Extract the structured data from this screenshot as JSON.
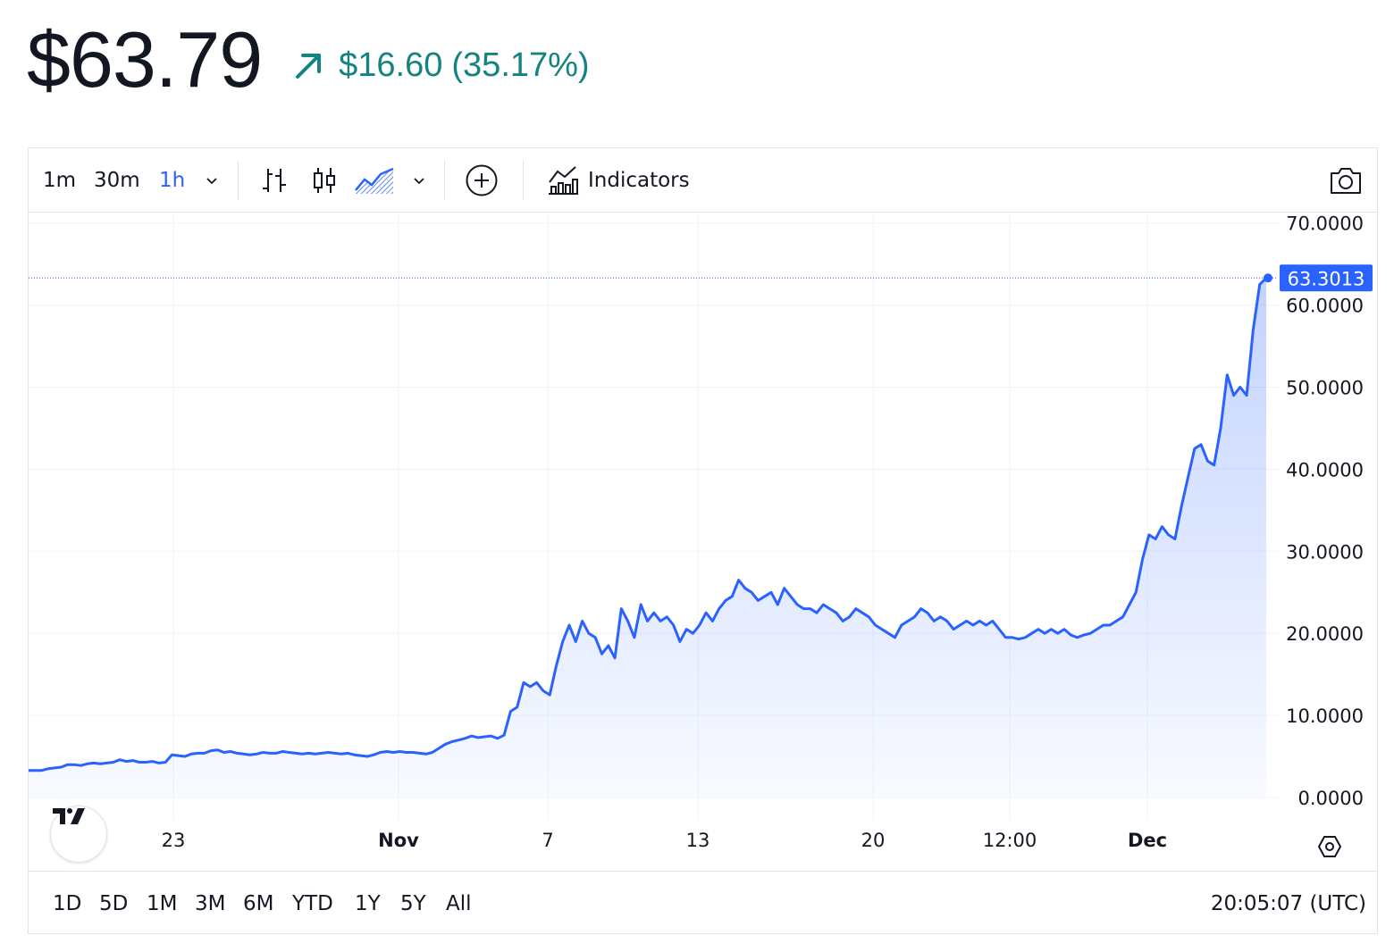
{
  "header": {
    "price": "$63.79",
    "change": "$16.60",
    "change_pct": "(35.17%)",
    "direction_icon": "arrow-up-right-icon",
    "change_color": "#138481"
  },
  "toolbar": {
    "intervals": [
      "1m",
      "30m",
      "1h"
    ],
    "active_interval": "1h",
    "indicators_label": "Indicators",
    "icons": [
      "chevron-down-icon",
      "bar-chart-icon",
      "candlestick-icon",
      "area-chart-icon",
      "chevron-down-icon",
      "plus-circle-icon",
      "indicators-icon",
      "camera-icon"
    ]
  },
  "chart_data": {
    "type": "area",
    "line_color": "#2962ff",
    "y_ticks": [
      "70.0000",
      "60.0000",
      "50.0000",
      "40.0000",
      "30.0000",
      "20.0000",
      "10.0000",
      "0.0000"
    ],
    "y_tick_values": [
      70,
      60,
      50,
      40,
      30,
      20,
      10,
      0
    ],
    "ylim": [
      0,
      70
    ],
    "x_ticks": [
      "23",
      "Nov",
      "7",
      "13",
      "20",
      "12:00",
      "Dec"
    ],
    "x_tick_bold": [
      false,
      true,
      false,
      false,
      false,
      false,
      true
    ],
    "last_value_label": "63.3013",
    "last_value": 63.3013,
    "grid": true,
    "series": [
      {
        "values": [
          3.3,
          3.3,
          3.3,
          3.5,
          3.6,
          3.7,
          4.0,
          4.0,
          3.9,
          4.1,
          4.2,
          4.1,
          4.2,
          4.3,
          4.6,
          4.4,
          4.5,
          4.3,
          4.3,
          4.4,
          4.2,
          4.3,
          5.2,
          5.1,
          5.0,
          5.3,
          5.4,
          5.4,
          5.7,
          5.8,
          5.5,
          5.6,
          5.4,
          5.3,
          5.2,
          5.3,
          5.5,
          5.4,
          5.4,
          5.6,
          5.5,
          5.4,
          5.3,
          5.4,
          5.3,
          5.4,
          5.5,
          5.4,
          5.3,
          5.4,
          5.2,
          5.1,
          5.0,
          5.2,
          5.5,
          5.6,
          5.5,
          5.6,
          5.5,
          5.5,
          5.4,
          5.3,
          5.5,
          6.0,
          6.5,
          6.8,
          7.0,
          7.2,
          7.5,
          7.3,
          7.4,
          7.5,
          7.2,
          7.6,
          10.5,
          11.0,
          14.0,
          13.5,
          14.0,
          13.0,
          12.5,
          16.0,
          19.0,
          21.0,
          19.0,
          21.5,
          20.0,
          19.5,
          17.5,
          18.5,
          17.0,
          23.0,
          21.5,
          19.5,
          23.5,
          21.5,
          22.5,
          21.5,
          22.0,
          21.0,
          19.0,
          20.5,
          20.0,
          21.0,
          22.5,
          21.5,
          23.0,
          24.0,
          24.5,
          26.5,
          25.5,
          25.0,
          24.0,
          24.5,
          25.0,
          23.5,
          25.5,
          24.5,
          23.5,
          23.0,
          23.0,
          22.5,
          23.5,
          23.0,
          22.5,
          21.5,
          22.0,
          23.0,
          22.5,
          22.0,
          21.0,
          20.5,
          20.0,
          19.5,
          21.0,
          21.5,
          22.0,
          23.0,
          22.5,
          21.5,
          22.0,
          21.5,
          20.5,
          21.0,
          21.5,
          21.0,
          21.5,
          21.0,
          21.5,
          20.5,
          19.5,
          19.5,
          19.3,
          19.5,
          20.0,
          20.5,
          20.0,
          20.5,
          20.0,
          20.5,
          19.8,
          19.5,
          19.8,
          20.0,
          20.5,
          21.0,
          21.0,
          21.5,
          22.0,
          23.5,
          25.0,
          29.0,
          32.0,
          31.5,
          33.0,
          32.0,
          31.5,
          35.5,
          39.0,
          42.5,
          43.0,
          41.0,
          40.5,
          45.0,
          51.5,
          49.0,
          50.0,
          49.0,
          57.0,
          62.5,
          63.3
        ]
      }
    ]
  },
  "bottombar": {
    "ranges": [
      "1D",
      "5D",
      "1M",
      "3M",
      "6M",
      "YTD",
      "1Y",
      "5Y",
      "All"
    ],
    "clock": "20:05:07 (UTC)"
  },
  "colors": {
    "accent": "#2962ff",
    "grid": "#f0f3fa",
    "border": "#e0e3eb",
    "text": "#131722",
    "positive": "#138481"
  }
}
